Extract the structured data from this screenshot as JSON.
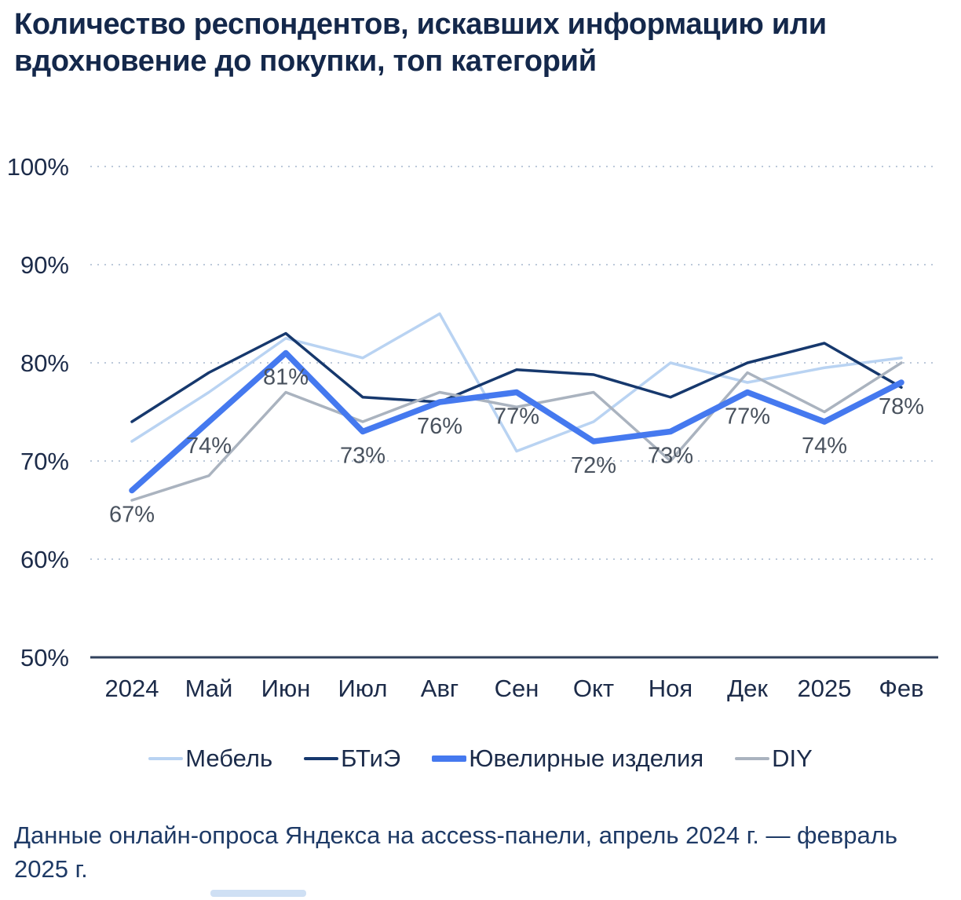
{
  "page": {
    "title": "Количество респондентов, искавших информацию или вдохновение до покупки, топ категорий",
    "footer": "Данные онлайн-опроса Яндекса на access-панели, апрель 2024 г. — февраль 2025 г."
  },
  "chart_data": {
    "type": "line",
    "categories": [
      "2024",
      "Май",
      "Июн",
      "Июл",
      "Авг",
      "Сен",
      "Окт",
      "Ноя",
      "Дек",
      "2025",
      "Фев"
    ],
    "series": [
      {
        "key": "furniture",
        "name": "Мебель",
        "color": "#b9d3f2",
        "width": 3.5,
        "values": [
          72,
          77,
          82.5,
          80.5,
          85,
          71,
          74,
          80,
          78,
          79.5,
          80.5
        ]
      },
      {
        "key": "appliances-electronics",
        "name": "БТиЭ",
        "color": "#16386d",
        "width": 3.5,
        "values": [
          74,
          79,
          83,
          76.5,
          76,
          79.3,
          78.8,
          76.5,
          80,
          82,
          77.5
        ]
      },
      {
        "key": "jewelry",
        "name": "Ювелирные изделия",
        "color": "#4579ef",
        "width": 7.5,
        "values": [
          67,
          74,
          81,
          73,
          76,
          77,
          72,
          73,
          77,
          74,
          78
        ],
        "labels": [
          "67%",
          "74%",
          "81%",
          "73%",
          "76%",
          "77%",
          "72%",
          "73%",
          "77%",
          "74%",
          "78%"
        ]
      },
      {
        "key": "diy",
        "name": "DIY",
        "color": "#aab3bf",
        "width": 3.5,
        "values": [
          66,
          68.5,
          77,
          74,
          77,
          75.5,
          77,
          70,
          79,
          75,
          80
        ]
      }
    ],
    "ylim": [
      50,
      100
    ],
    "yticks": [
      "50%",
      "60%",
      "70%",
      "80%",
      "90%",
      "100%"
    ],
    "grid": true,
    "grid_color": "#bcc9da",
    "axis_color": "#31415c",
    "legend_position": "bottom"
  }
}
